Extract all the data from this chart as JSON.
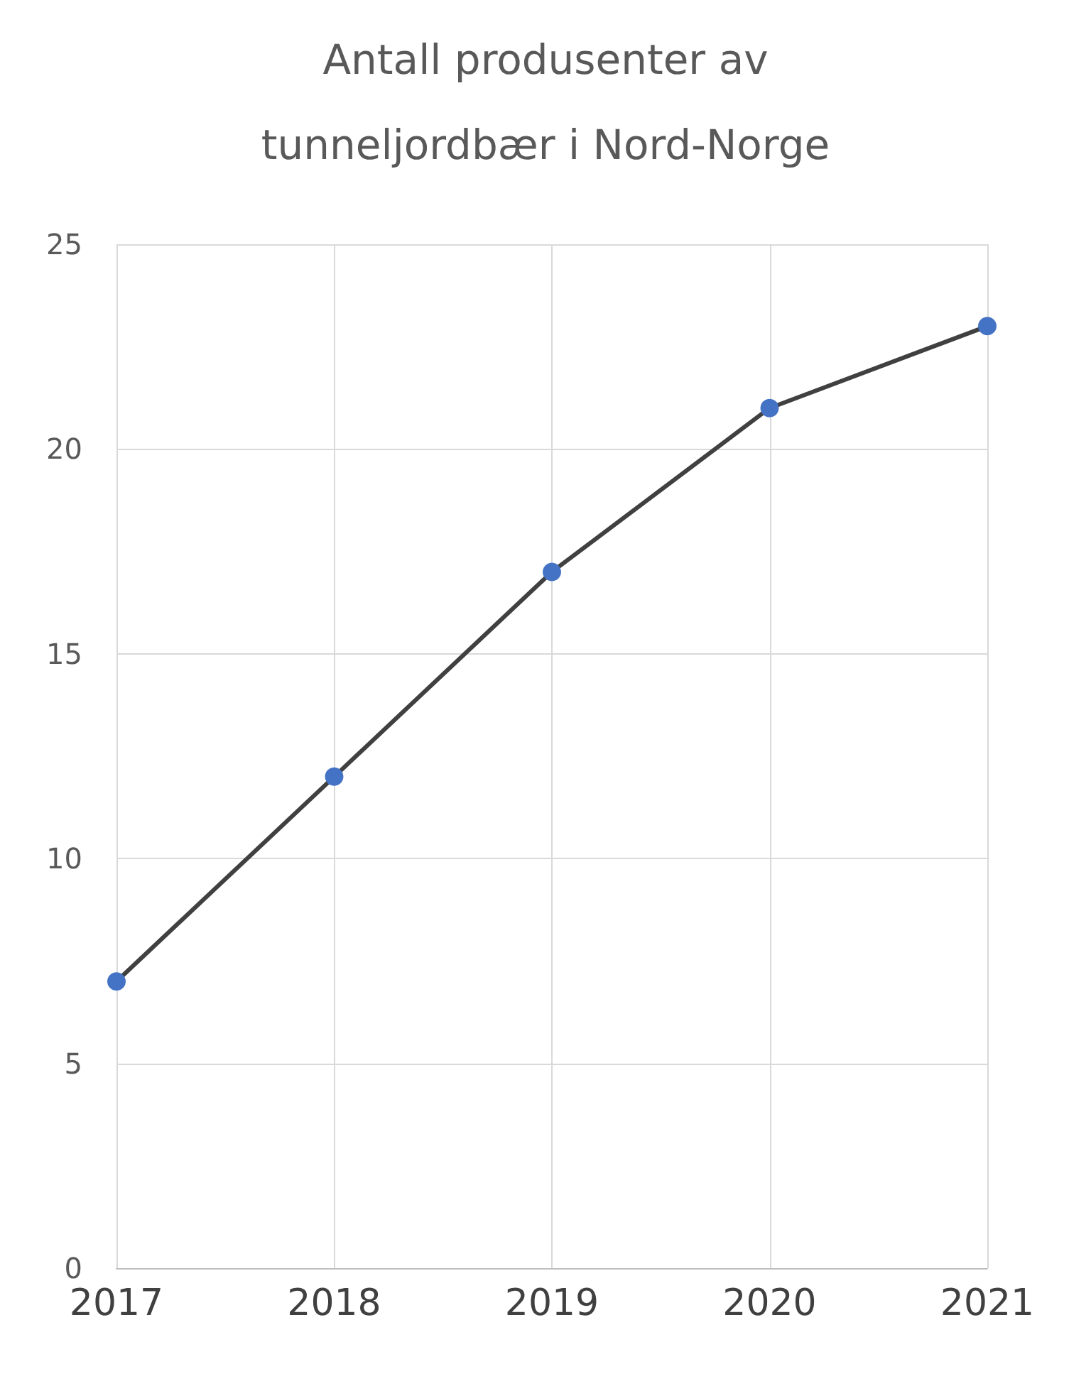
{
  "chart_data": {
    "type": "line",
    "title": "Antall produsenter av tunneljordbær i Nord-Norge",
    "categories": [
      "2017",
      "2018",
      "2019",
      "2020",
      "2021"
    ],
    "series": [
      {
        "color": "#404040",
        "colors": [
          "#4472c4",
          "#4472c4",
          "#4472c4",
          "#4472c4",
          "#4472c4"
        ],
        "values": [
          7,
          12,
          17,
          21,
          23
        ]
      }
    ],
    "marker": "circle",
    "ylim": [
      0,
      25
    ],
    "yticks": [
      0,
      5,
      10,
      15,
      20,
      25
    ],
    "grid": true
  }
}
